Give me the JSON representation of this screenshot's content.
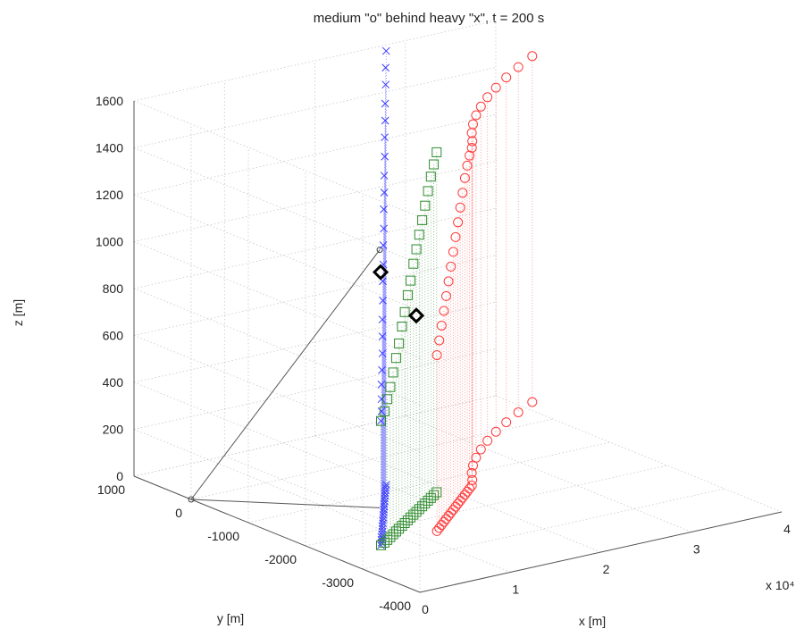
{
  "chart_data": {
    "type": "scatter3d",
    "title": "medium \"o\" behind heavy \"x\", t = 200 s",
    "xlabel": "x [m]",
    "ylabel": "y [m]",
    "zlabel": "z [m]",
    "x_multiplier": "x 10⁴",
    "xlim": [
      0,
      40000
    ],
    "ylim": [
      -4000,
      1000
    ],
    "zlim": [
      0,
      1600
    ],
    "x_ticks": [
      "0",
      "1",
      "2",
      "3",
      "4"
    ],
    "y_ticks": [
      "1000",
      "0",
      "-1000",
      "-2000",
      "-3000",
      "-4000"
    ],
    "z_ticks": [
      "0",
      "200",
      "400",
      "600",
      "800",
      "1000",
      "1200",
      "1400",
      "1600"
    ],
    "grid": true,
    "projection_stems": true,
    "series": [
      {
        "marker": "x",
        "color": "#3b3bff",
        "points": [
          [
            5500,
            -2450,
            530
          ],
          [
            6000,
            -2380,
            560
          ],
          [
            6500,
            -2300,
            600
          ],
          [
            7000,
            -2220,
            650
          ],
          [
            7500,
            -2150,
            700
          ],
          [
            8000,
            -2080,
            760
          ],
          [
            8500,
            -2000,
            820
          ],
          [
            9000,
            -1920,
            880
          ],
          [
            9500,
            -1850,
            950
          ],
          [
            10000,
            -1770,
            1020
          ],
          [
            10500,
            -1700,
            1080
          ],
          [
            11000,
            -1620,
            1150
          ],
          [
            11500,
            -1550,
            1210
          ],
          [
            12000,
            -1470,
            1280
          ],
          [
            12500,
            -1400,
            1340
          ],
          [
            13000,
            -1320,
            1400
          ],
          [
            13500,
            -1250,
            1470
          ],
          [
            14000,
            -1170,
            1540
          ],
          [
            14500,
            -1100,
            1600
          ],
          [
            15000,
            -1020,
            1660
          ],
          [
            15500,
            -950,
            1730
          ],
          [
            16000,
            -870,
            1790
          ],
          [
            16500,
            -800,
            1850
          ]
        ]
      },
      {
        "marker": "square",
        "color": "#2e8b2e",
        "points": [
          [
            5500,
            -2450,
            530
          ],
          [
            6200,
            -2400,
            560
          ],
          [
            6900,
            -2340,
            600
          ],
          [
            7600,
            -2280,
            640
          ],
          [
            8300,
            -2220,
            690
          ],
          [
            9000,
            -2160,
            740
          ],
          [
            9700,
            -2100,
            790
          ],
          [
            10400,
            -2040,
            850
          ],
          [
            11100,
            -1980,
            900
          ],
          [
            11800,
            -1920,
            960
          ],
          [
            12500,
            -1860,
            1010
          ],
          [
            13200,
            -1800,
            1070
          ],
          [
            13900,
            -1740,
            1120
          ],
          [
            14600,
            -1680,
            1170
          ],
          [
            15300,
            -1620,
            1220
          ],
          [
            16000,
            -1560,
            1270
          ],
          [
            16700,
            -1500,
            1320
          ],
          [
            17400,
            -1440,
            1370
          ],
          [
            18100,
            -1380,
            1410
          ],
          [
            18800,
            -1320,
            1450
          ]
        ]
      },
      {
        "marker": "circle",
        "color": "#ff3b3b",
        "points": [
          [
            12000,
            -2400,
            750
          ],
          [
            12700,
            -2330,
            800
          ],
          [
            13400,
            -2260,
            850
          ],
          [
            14100,
            -2190,
            900
          ],
          [
            14800,
            -2120,
            950
          ],
          [
            15500,
            -2050,
            1000
          ],
          [
            16200,
            -1980,
            1050
          ],
          [
            16900,
            -1910,
            1100
          ],
          [
            17600,
            -1840,
            1150
          ],
          [
            18300,
            -1770,
            1200
          ],
          [
            19000,
            -1700,
            1250
          ],
          [
            19700,
            -1630,
            1300
          ],
          [
            20400,
            -1560,
            1350
          ],
          [
            21100,
            -1490,
            1390
          ],
          [
            21800,
            -1420,
            1420
          ],
          [
            22500,
            -1350,
            1440
          ],
          [
            23500,
            -1200,
            1445
          ],
          [
            24700,
            -1000,
            1450
          ],
          [
            26100,
            -800,
            1455
          ],
          [
            27700,
            -600,
            1460
          ],
          [
            29500,
            -400,
            1462
          ],
          [
            31500,
            -200,
            1465
          ],
          [
            33700,
            0,
            1467
          ],
          [
            36100,
            200,
            1470
          ],
          [
            38700,
            400,
            1472
          ],
          [
            41500,
            600,
            1475
          ]
        ]
      }
    ],
    "highlight_markers": [
      {
        "marker": "diamond",
        "color": "#000000",
        "point": [
          10200,
          -1700,
          1050
        ]
      },
      {
        "marker": "diamond",
        "color": "#000000",
        "point": [
          11300,
          -2150,
          900
        ]
      }
    ],
    "reference_line": [
      [
        0,
        0,
        0
      ],
      [
        12000,
        -1400,
        1100
      ]
    ]
  }
}
